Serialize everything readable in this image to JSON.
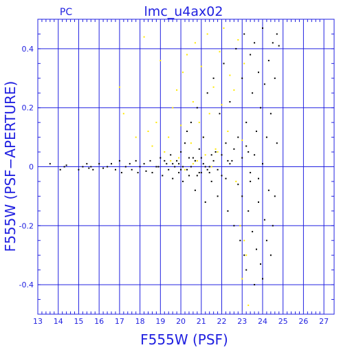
{
  "chart_data": {
    "type": "scatter",
    "title": "lmc_u4ax02",
    "subtitle": "PC",
    "xlabel": "F555W (PSF)",
    "ylabel": "F555W (PSF−APERTURE)",
    "xlim": [
      13,
      27.5
    ],
    "ylim": [
      -0.5,
      0.5
    ],
    "x_ticks": [
      "13",
      "14",
      "15",
      "16",
      "17",
      "18",
      "19",
      "20",
      "21",
      "22",
      "23",
      "24",
      "25",
      "26",
      "27"
    ],
    "y_ticks": [
      "-0.4",
      "-0.2",
      "0",
      "0.2",
      "0.4"
    ],
    "grid": true,
    "colors": {
      "axis": "#2020e0",
      "black_points": "#000000",
      "yellow_points": "#ffe800"
    },
    "series": [
      {
        "key": "black",
        "color": "#000000",
        "points": [
          [
            13.6,
            0.01
          ],
          [
            14.1,
            -0.01
          ],
          [
            14.3,
            0.0
          ],
          [
            14.4,
            0.005
          ],
          [
            15.0,
            -0.01
          ],
          [
            15.2,
            0.0
          ],
          [
            15.4,
            0.01
          ],
          [
            15.5,
            -0.005
          ],
          [
            15.6,
            0.0
          ],
          [
            15.7,
            -0.01
          ],
          [
            16.0,
            0.01
          ],
          [
            16.2,
            -0.005
          ],
          [
            16.4,
            0.0
          ],
          [
            16.6,
            0.01
          ],
          [
            16.8,
            -0.01
          ],
          [
            17.0,
            0.02
          ],
          [
            17.1,
            -0.02
          ],
          [
            17.3,
            0.0
          ],
          [
            17.5,
            0.01
          ],
          [
            17.6,
            -0.01
          ],
          [
            17.8,
            0.02
          ],
          [
            17.9,
            -0.02
          ],
          [
            18.0,
            0.0
          ],
          [
            18.2,
            0.01
          ],
          [
            18.3,
            -0.015
          ],
          [
            18.5,
            0.02
          ],
          [
            18.6,
            -0.02
          ],
          [
            18.8,
            0.0
          ],
          [
            19.0,
            0.03
          ],
          [
            19.1,
            -0.03
          ],
          [
            19.3,
            0.01
          ],
          [
            19.4,
            -0.01
          ],
          [
            19.5,
            0.04
          ],
          [
            19.6,
            -0.04
          ],
          [
            19.7,
            0.0
          ],
          [
            19.8,
            0.02
          ],
          [
            19.9,
            -0.02
          ],
          [
            20.0,
            0.05
          ],
          [
            20.1,
            -0.05
          ],
          [
            20.2,
            0.08
          ],
          [
            20.3,
            0.12
          ],
          [
            20.4,
            -0.03
          ],
          [
            20.5,
            0.15
          ],
          [
            20.6,
            0.03
          ],
          [
            20.7,
            -0.08
          ],
          [
            20.8,
            0.2
          ],
          [
            20.9,
            0.06
          ],
          [
            21.0,
            -0.02
          ],
          [
            21.1,
            0.1
          ],
          [
            21.2,
            -0.12
          ],
          [
            21.3,
            0.25
          ],
          [
            21.4,
            0.0
          ],
          [
            21.5,
            -0.05
          ],
          [
            21.6,
            0.3
          ],
          [
            21.7,
            0.05
          ],
          [
            21.8,
            -0.1
          ],
          [
            21.9,
            0.18
          ],
          [
            22.0,
            -0.03
          ],
          [
            22.1,
            0.35
          ],
          [
            22.2,
            0.08
          ],
          [
            22.3,
            -0.15
          ],
          [
            22.4,
            0.22
          ],
          [
            22.5,
            0.02
          ],
          [
            22.6,
            -0.2
          ],
          [
            22.7,
            0.4
          ],
          [
            22.8,
            0.1
          ],
          [
            22.9,
            -0.25
          ],
          [
            23.0,
            0.3
          ],
          [
            23.0,
            -0.1
          ],
          [
            23.1,
            0.45
          ],
          [
            23.1,
            -0.3
          ],
          [
            23.2,
            0.15
          ],
          [
            23.2,
            -0.35
          ],
          [
            23.3,
            0.05
          ],
          [
            23.3,
            -0.15
          ],
          [
            23.4,
            0.38
          ],
          [
            23.4,
            -0.05
          ],
          [
            23.5,
            0.25
          ],
          [
            23.5,
            -0.22
          ],
          [
            23.6,
            0.42
          ],
          [
            23.6,
            -0.4
          ],
          [
            23.7,
            0.12
          ],
          [
            23.7,
            -0.28
          ],
          [
            23.8,
            0.32
          ],
          [
            23.8,
            -0.12
          ],
          [
            23.9,
            0.2
          ],
          [
            23.9,
            -0.33
          ],
          [
            24.0,
            0.47
          ],
          [
            24.0,
            -0.38
          ],
          [
            24.1,
            0.28
          ],
          [
            24.1,
            -0.18
          ],
          [
            24.2,
            0.1
          ],
          [
            24.2,
            -0.25
          ],
          [
            24.3,
            0.36
          ],
          [
            24.3,
            -0.08
          ],
          [
            24.4,
            0.18
          ],
          [
            24.4,
            -0.3
          ],
          [
            24.5,
            0.42
          ],
          [
            24.5,
            -0.2
          ],
          [
            24.6,
            0.3
          ],
          [
            24.6,
            -0.1
          ],
          [
            24.7,
            0.45
          ],
          [
            24.7,
            0.08
          ],
          [
            24.8,
            0.41
          ],
          [
            21.0,
            0.03
          ],
          [
            21.2,
            0.0
          ],
          [
            21.4,
            -0.02
          ],
          [
            21.6,
            0.02
          ],
          [
            21.8,
            -0.01
          ],
          [
            22.0,
            0.04
          ],
          [
            22.2,
            -0.04
          ],
          [
            22.4,
            0.01
          ],
          [
            19.9,
            0.01
          ],
          [
            20.1,
            0.0
          ],
          [
            20.3,
            -0.01
          ],
          [
            20.5,
            0.0
          ],
          [
            20.7,
            0.02
          ],
          [
            20.9,
            -0.02
          ],
          [
            21.1,
            0.01
          ],
          [
            21.3,
            -0.01
          ],
          [
            22.6,
            0.06
          ],
          [
            22.8,
            -0.06
          ],
          [
            23.0,
            0.03
          ],
          [
            23.2,
            0.07
          ],
          [
            23.4,
            -0.02
          ],
          [
            23.6,
            0.04
          ],
          [
            23.8,
            -0.04
          ],
          [
            24.0,
            0.01
          ],
          [
            18.9,
            0.0
          ],
          [
            19.2,
            0.02
          ],
          [
            19.6,
            0.01
          ],
          [
            20.0,
            -0.01
          ],
          [
            20.4,
            0.03
          ],
          [
            20.8,
            -0.03
          ],
          [
            21.5,
            0.04
          ],
          [
            22.3,
            0.02
          ]
        ]
      },
      {
        "key": "yellow",
        "color": "#ffe800",
        "points": [
          [
            17.0,
            0.27
          ],
          [
            17.2,
            0.18
          ],
          [
            17.8,
            0.1
          ],
          [
            18.2,
            0.44
          ],
          [
            18.4,
            0.12
          ],
          [
            18.6,
            0.07
          ],
          [
            18.8,
            0.15
          ],
          [
            19.0,
            0.36
          ],
          [
            19.2,
            0.05
          ],
          [
            19.4,
            0.1
          ],
          [
            19.6,
            0.2
          ],
          [
            19.8,
            0.26
          ],
          [
            20.0,
            0.14
          ],
          [
            20.1,
            0.32
          ],
          [
            20.3,
            0.38
          ],
          [
            20.5,
            0.08
          ],
          [
            20.6,
            0.22
          ],
          [
            20.7,
            0.42
          ],
          [
            20.9,
            0.15
          ],
          [
            21.0,
            0.34
          ],
          [
            21.1,
            0.1
          ],
          [
            21.3,
            0.45
          ],
          [
            21.4,
            0.18
          ],
          [
            21.6,
            0.27
          ],
          [
            21.8,
            0.05
          ],
          [
            21.9,
            0.39
          ],
          [
            22.0,
            0.21
          ],
          [
            22.1,
            0.47
          ],
          [
            22.3,
            0.12
          ],
          [
            22.4,
            0.31
          ],
          [
            22.6,
            0.26
          ],
          [
            22.8,
            0.43
          ],
          [
            23.0,
            0.09
          ],
          [
            23.1,
            0.35
          ],
          [
            23.2,
            -0.3
          ],
          [
            23.0,
            -0.38
          ],
          [
            23.3,
            -0.47
          ],
          [
            22.9,
            -0.2
          ],
          [
            23.1,
            -0.25
          ],
          [
            22.7,
            -0.05
          ],
          [
            20.2,
            -0.01
          ],
          [
            20.8,
            0.02
          ],
          [
            21.2,
            0.04
          ],
          [
            21.5,
            0.0
          ],
          [
            19.5,
            0.02
          ],
          [
            19.9,
            0.03
          ],
          [
            20.6,
            0.01
          ],
          [
            21.7,
            0.06
          ]
        ]
      }
    ]
  }
}
